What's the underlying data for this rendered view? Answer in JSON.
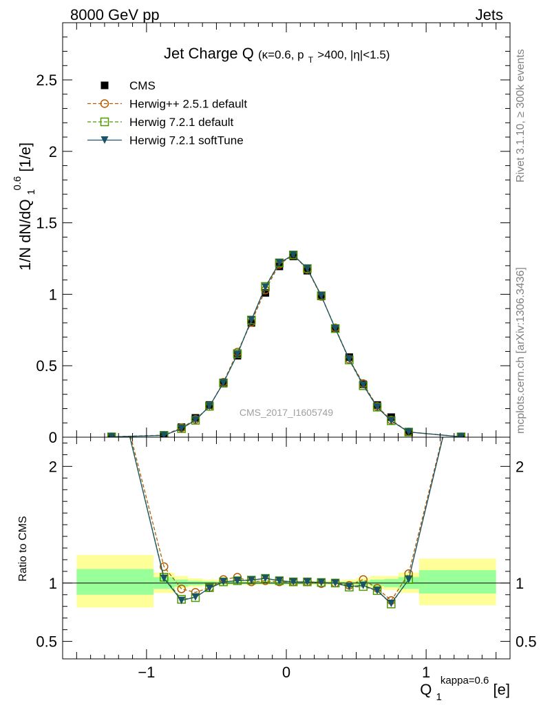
{
  "header": {
    "left": "8000 GeV pp",
    "right": "Jets"
  },
  "side_labels": {
    "top": "Rivet 3.1.10, ≥ 300k events",
    "bottom": "mcplots.cern.ch [arXiv:1306.3436]"
  },
  "watermark": "CMS_2017_I1605749",
  "chart_data": [
    {
      "type": "line",
      "panel": "main",
      "title": "Jet Charge Q",
      "title_sub": "(κ=0.6, p",
      "title_sub_T": "T",
      "title_sub_rest": ">400, |η|<1.5)",
      "ylabel": "1/N dN/dQ",
      "ylabel_sub": "1",
      "ylabel_sup": "0.6",
      "ylabel_unit": " [1/e]",
      "xlim": [
        -1.6,
        1.6
      ],
      "ylim": [
        0,
        2.9
      ],
      "yticks": [
        "0",
        "0.5",
        "1",
        "1.5",
        "2",
        "2.5"
      ],
      "ytick_values": [
        0,
        0.5,
        1,
        1.5,
        2,
        2.5
      ],
      "x": [
        -1.25,
        -0.875,
        -0.75,
        -0.65,
        -0.55,
        -0.45,
        -0.35,
        -0.25,
        -0.15,
        -0.05,
        0.05,
        0.15,
        0.25,
        0.35,
        0.45,
        0.55,
        0.65,
        0.75,
        0.875,
        1.25
      ],
      "series": [
        {
          "name": "CMS",
          "marker": "filled-square",
          "color": "#000000",
          "values": [
            0.002,
            0.012,
            0.07,
            0.135,
            0.225,
            0.375,
            0.57,
            0.8,
            1.01,
            1.195,
            1.265,
            1.165,
            0.985,
            0.76,
            0.56,
            0.37,
            0.225,
            0.14,
            0.035,
            0.002
          ]
        },
        {
          "name": "Herwig++ 2.5.1 default",
          "marker": "open-circle",
          "color": "#b35900",
          "values": [
            0.003,
            0.014,
            0.066,
            0.124,
            0.215,
            0.385,
            0.595,
            0.805,
            1.03,
            1.21,
            1.275,
            1.175,
            0.985,
            0.765,
            0.545,
            0.375,
            0.215,
            0.12,
            0.037,
            0.003
          ]
        },
        {
          "name": "Herwig 7.2.1 default",
          "marker": "open-square",
          "color": "#4d9900",
          "values": [
            0.0025,
            0.013,
            0.06,
            0.118,
            0.216,
            0.38,
            0.585,
            0.82,
            1.055,
            1.22,
            1.275,
            1.18,
            0.99,
            0.76,
            0.54,
            0.36,
            0.21,
            0.115,
            0.036,
            0.0025
          ]
        },
        {
          "name": "Herwig 7.2.1 softTune",
          "marker": "filled-triangle-down",
          "color": "#1a5266",
          "values": [
            0.0025,
            0.0125,
            0.06,
            0.12,
            0.216,
            0.38,
            0.58,
            0.82,
            1.05,
            1.22,
            1.275,
            1.18,
            0.99,
            0.76,
            0.545,
            0.365,
            0.21,
            0.115,
            0.036,
            0.0025
          ]
        }
      ]
    },
    {
      "type": "line",
      "panel": "ratio",
      "ylabel": "Ratio to CMS",
      "xlabel": "Q",
      "xlabel_sub": "1",
      "xlabel_sup": "kappa=0.6",
      "xlabel_unit": " [e]",
      "xlim": [
        -1.6,
        1.6
      ],
      "ylim": [
        0.35,
        2.25
      ],
      "yticks": [
        "0.5",
        "1",
        "2"
      ],
      "ytick_values": [
        0.5,
        1,
        2
      ],
      "xticks": [
        "−1",
        "0",
        "1"
      ],
      "xtick_values": [
        -1,
        0,
        1
      ],
      "band_edges": [
        -1.5,
        -0.95,
        -0.8,
        -0.7,
        -0.6,
        -0.5,
        -0.4,
        -0.3,
        -0.2,
        -0.1,
        0,
        0.1,
        0.2,
        0.3,
        0.4,
        0.5,
        0.6,
        0.7,
        0.8,
        0.95,
        1.5
      ],
      "band_inner": [
        [
          0.9,
          1.12
        ],
        [
          0.95,
          1.05
        ],
        [
          0.97,
          1.03
        ],
        [
          0.98,
          1.02
        ],
        [
          0.985,
          1.015
        ],
        [
          0.988,
          1.012
        ],
        [
          0.99,
          1.01
        ],
        [
          0.99,
          1.01
        ],
        [
          0.99,
          1.01
        ],
        [
          0.99,
          1.01
        ],
        [
          0.99,
          1.01
        ],
        [
          0.99,
          1.01
        ],
        [
          0.99,
          1.01
        ],
        [
          0.99,
          1.01
        ],
        [
          0.988,
          1.012
        ],
        [
          0.985,
          1.02
        ],
        [
          0.975,
          1.03
        ],
        [
          0.965,
          1.035
        ],
        [
          0.95,
          1.05
        ],
        [
          0.91,
          1.11
        ]
      ],
      "band_outer": [
        [
          0.79,
          1.24
        ],
        [
          0.915,
          1.09
        ],
        [
          0.955,
          1.06
        ],
        [
          0.965,
          1.04
        ],
        [
          0.975,
          1.03
        ],
        [
          0.98,
          1.025
        ],
        [
          0.985,
          1.02
        ],
        [
          0.985,
          1.02
        ],
        [
          0.985,
          1.02
        ],
        [
          0.985,
          1.02
        ],
        [
          0.985,
          1.02
        ],
        [
          0.985,
          1.02
        ],
        [
          0.985,
          1.02
        ],
        [
          0.985,
          1.02
        ],
        [
          0.975,
          1.03
        ],
        [
          0.965,
          1.045
        ],
        [
          0.95,
          1.06
        ],
        [
          0.94,
          1.06
        ],
        [
          0.915,
          1.09
        ],
        [
          0.81,
          1.21
        ]
      ],
      "x": [
        -1.25,
        -0.875,
        -0.75,
        -0.65,
        -0.55,
        -0.45,
        -0.35,
        -0.25,
        -0.15,
        -0.05,
        0.05,
        0.15,
        0.25,
        0.35,
        0.45,
        0.55,
        0.65,
        0.75,
        0.875,
        1.25
      ],
      "series": [
        {
          "name": "Herwig++ 2.5.1 default",
          "marker": "open-circle",
          "color": "#b35900",
          "values": [
            2.9,
            1.14,
            0.95,
            0.92,
            0.96,
            1.03,
            1.05,
            1.01,
            1.02,
            1.01,
            1.01,
            1.01,
            0.995,
            1.0,
            0.98,
            1.03,
            0.955,
            0.85,
            1.08,
            2.9
          ]
        },
        {
          "name": "Herwig 7.2.1 default",
          "marker": "open-square",
          "color": "#4d9900",
          "values": [
            2.9,
            1.05,
            0.86,
            0.875,
            0.96,
            1.01,
            1.02,
            1.025,
            1.04,
            1.02,
            1.01,
            1.01,
            1.005,
            1.0,
            0.965,
            0.97,
            0.935,
            0.82,
            1.03,
            2.9
          ]
        },
        {
          "name": "Herwig 7.2.1 softTune",
          "marker": "filled-triangle-down",
          "color": "#1a5266",
          "values": [
            2.9,
            1.04,
            0.85,
            0.88,
            0.955,
            1.01,
            1.02,
            1.025,
            1.04,
            1.02,
            1.01,
            1.01,
            1.005,
            1.0,
            0.97,
            0.98,
            0.935,
            0.825,
            1.03,
            2.9
          ]
        }
      ]
    }
  ]
}
